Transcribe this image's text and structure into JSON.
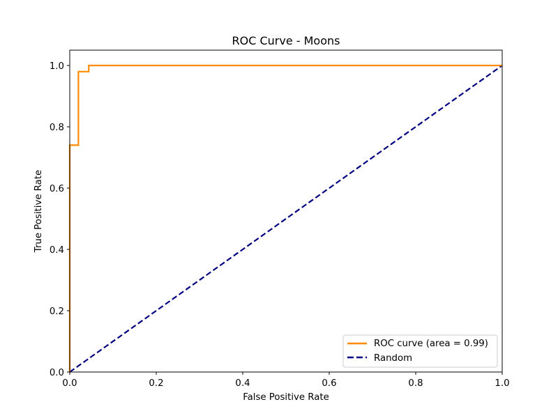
{
  "chart_data": {
    "type": "line",
    "title": "ROC Curve - Moons",
    "xlabel": "False Positive Rate",
    "ylabel": "True Positive Rate",
    "xlim": [
      0.0,
      1.0
    ],
    "ylim": [
      0.0,
      1.05
    ],
    "xticks": [
      "0.0",
      "0.2",
      "0.4",
      "0.6",
      "0.8",
      "1.0"
    ],
    "yticks": [
      "0.0",
      "0.2",
      "0.4",
      "0.6",
      "0.8",
      "1.0"
    ],
    "xtick_values": [
      0.0,
      0.2,
      0.4,
      0.6,
      0.8,
      1.0
    ],
    "ytick_values": [
      0.0,
      0.2,
      0.4,
      0.6,
      0.8,
      1.0
    ],
    "grid": false,
    "legend_position": "lower-right",
    "series": [
      {
        "name": "ROC curve (area = 0.99)",
        "color": "#ff8c00",
        "style": "solid",
        "x": [
          0.0,
          0.0,
          0.0,
          0.02,
          0.02,
          0.044,
          0.044,
          1.0
        ],
        "y": [
          0.0,
          0.74,
          0.74,
          0.74,
          0.98,
          0.98,
          1.0,
          1.0
        ]
      },
      {
        "name": "Random",
        "color": "#000080",
        "style": "dashed",
        "x": [
          0.0,
          1.0
        ],
        "y": [
          0.0,
          1.0
        ]
      }
    ]
  }
}
